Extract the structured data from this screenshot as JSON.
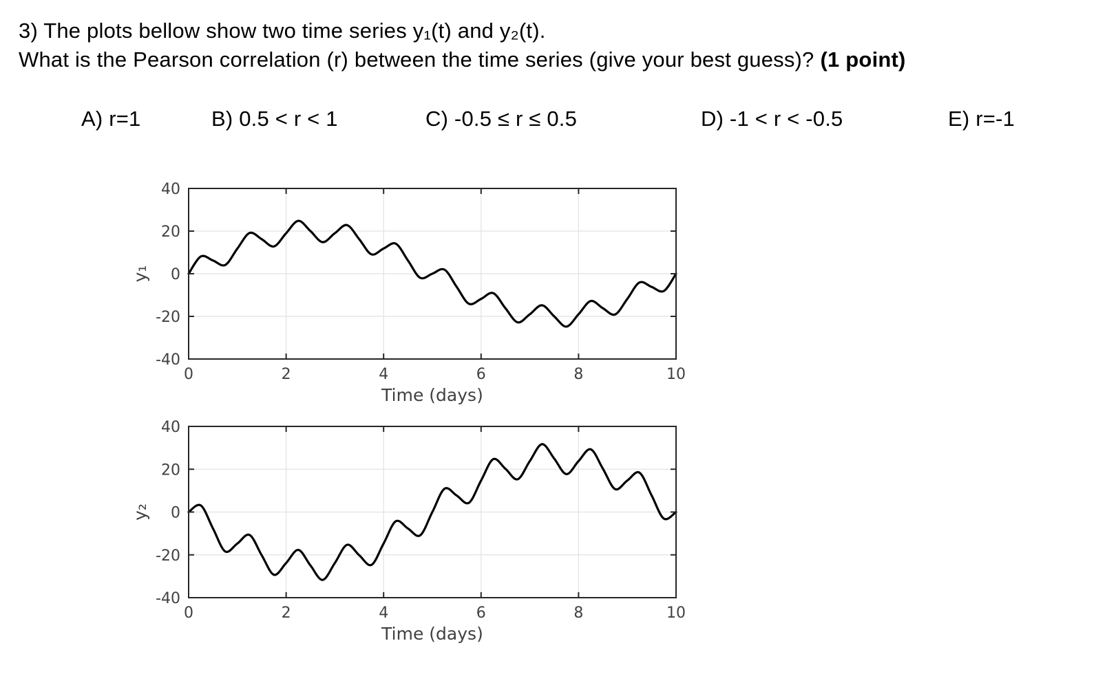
{
  "question": {
    "line1": "3) The plots bellow show two time series y₁(t) and y₂(t).",
    "line2": "What is the Pearson correlation (r) between the time series (give your best guess)?",
    "points_note": "(1 point)"
  },
  "options": [
    {
      "label": "A) r=1"
    },
    {
      "label": "B) 0.5 < r < 1"
    },
    {
      "label": "C) -0.5 ≤ r ≤ 0.5"
    },
    {
      "label": "D) -1 < r < -0.5"
    },
    {
      "label": "E) r=-1"
    }
  ],
  "colors": {
    "line": "#000000",
    "axis_box": "#262626",
    "grid": "#e2e2e2",
    "tick_label": "#414141",
    "question_text": "#000000"
  },
  "chart_data": [
    {
      "type": "line",
      "title": "",
      "xlabel": "Time (days)",
      "ylabel": "y₁",
      "xlim": [
        0,
        10
      ],
      "ylim": [
        -40,
        40
      ],
      "xticks": [
        0,
        2,
        4,
        6,
        8,
        10
      ],
      "yticks": [
        -40,
        -20,
        0,
        20,
        40
      ],
      "grid": true,
      "legend": "none",
      "line_color": "#000000",
      "x": [
        0,
        0.25,
        0.5,
        0.75,
        1,
        1.25,
        1.5,
        1.75,
        2,
        2.25,
        2.5,
        2.75,
        3,
        3.25,
        3.5,
        3.75,
        4,
        4.25,
        4.5,
        4.75,
        5,
        5.25,
        5.5,
        5.75,
        6,
        6.25,
        6.5,
        6.75,
        7,
        7.25,
        7.5,
        7.75,
        8,
        8.25,
        8.5,
        8.75,
        9,
        9.25,
        9.5,
        9.75,
        10
      ],
      "y": [
        0.0,
        8.1,
        6.2,
        4.1,
        11.8,
        19.1,
        16.2,
        12.8,
        19.0,
        24.8,
        20.0,
        14.8,
        19.0,
        22.8,
        16.2,
        9.1,
        11.8,
        14.1,
        6.2,
        -1.9,
        0.0,
        1.9,
        -6.2,
        -14.1,
        -11.8,
        -9.1,
        -16.2,
        -22.8,
        -19.0,
        -14.8,
        -20.0,
        -24.8,
        -19.0,
        -12.8,
        -16.2,
        -19.1,
        -11.8,
        -4.1,
        -6.2,
        -8.1,
        0.0
      ]
    },
    {
      "type": "line",
      "title": "",
      "xlabel": "Time (days)",
      "ylabel": "y₂",
      "xlim": [
        0,
        10
      ],
      "ylim": [
        -40,
        40
      ],
      "xticks": [
        0,
        2,
        4,
        6,
        8,
        10
      ],
      "yticks": [
        -40,
        -20,
        0,
        20,
        40
      ],
      "grid": true,
      "legend": "none",
      "line_color": "#000000",
      "x": [
        0,
        0.25,
        0.5,
        0.75,
        1,
        1.25,
        1.5,
        1.75,
        2,
        2.25,
        2.5,
        2.75,
        3,
        3.25,
        3.5,
        3.75,
        4,
        4.25,
        4.5,
        4.75,
        5,
        5.25,
        5.5,
        5.75,
        6,
        6.25,
        6.5,
        6.75,
        7,
        7.25,
        7.5,
        7.75,
        8,
        8.25,
        8.5,
        8.75,
        9,
        9.25,
        9.5,
        9.75,
        10
      ],
      "y": [
        0.0,
        3.1,
        -7.7,
        -18.4,
        -14.7,
        -10.7,
        -20.2,
        -29.3,
        -23.8,
        -17.7,
        -25.0,
        -31.7,
        -23.8,
        -15.3,
        -20.2,
        -24.7,
        -14.7,
        -4.3,
        -7.7,
        -10.9,
        0.0,
        10.9,
        7.7,
        4.3,
        14.7,
        24.7,
        20.2,
        15.3,
        23.8,
        31.7,
        25.0,
        17.7,
        23.8,
        29.3,
        20.2,
        10.7,
        14.7,
        18.4,
        7.7,
        -3.1,
        0.0
      ]
    }
  ]
}
